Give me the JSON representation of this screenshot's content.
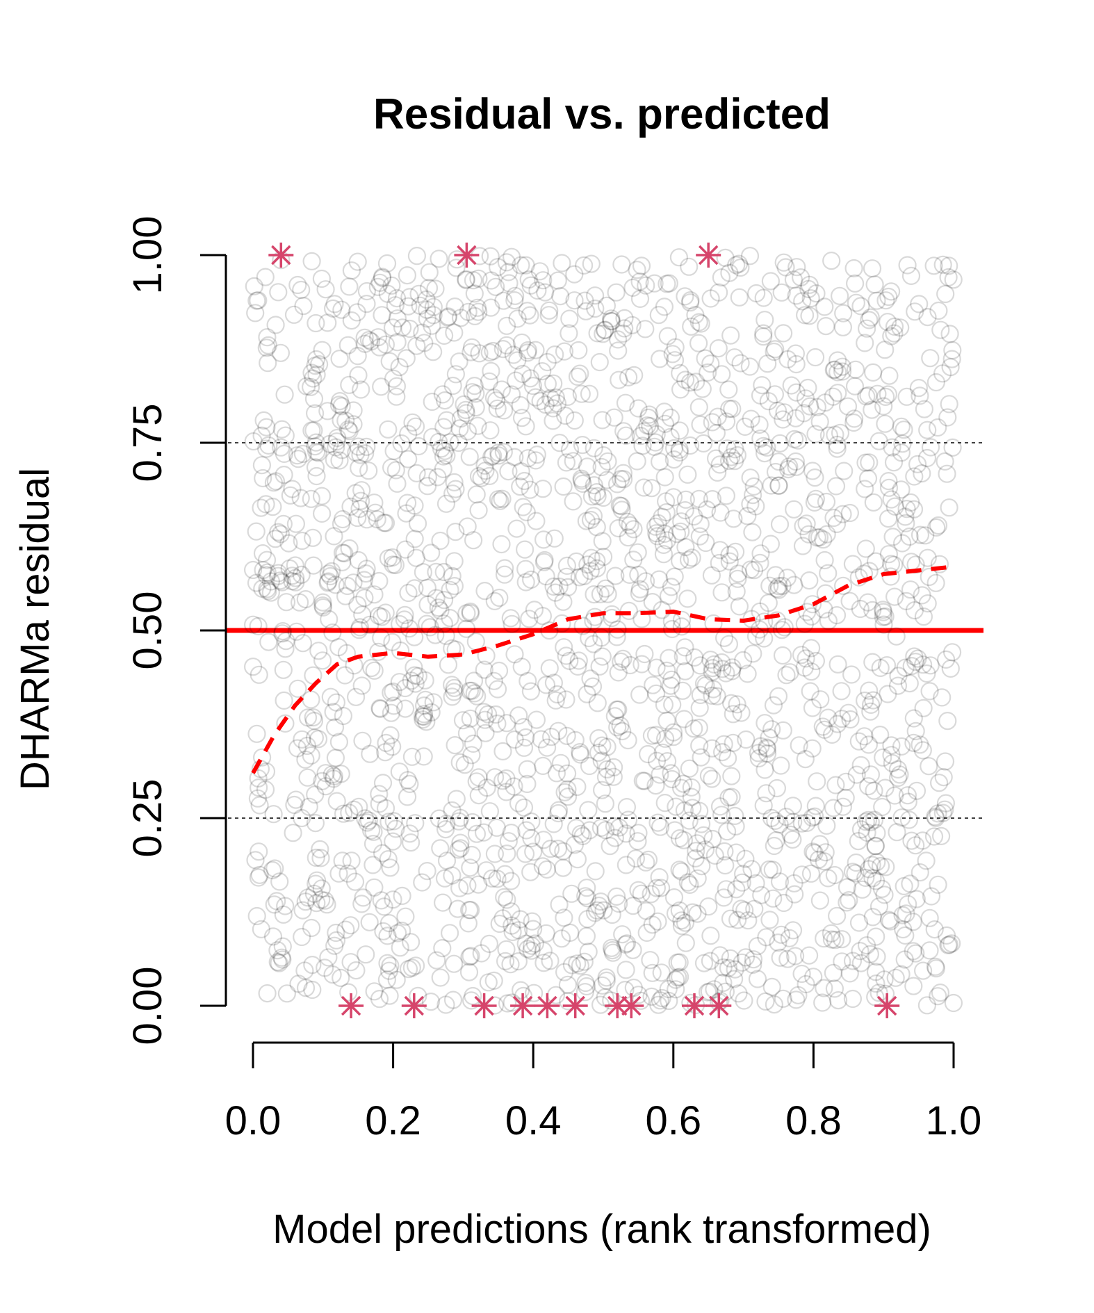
{
  "chart_data": {
    "type": "scatter",
    "title": "Residual vs. predicted",
    "xlabel": "Model predictions (rank transformed)",
    "ylabel": "DHARMa residual",
    "xlim": [
      -0.04,
      1.04
    ],
    "ylim": [
      0,
      1
    ],
    "x_ticks": [
      "0.0",
      "0.2",
      "0.4",
      "0.6",
      "0.8",
      "1.0"
    ],
    "y_ticks": [
      "0.00",
      "0.25",
      "0.50",
      "0.75",
      "1.00"
    ],
    "reference_lines": [
      {
        "y": 0.25,
        "style": "dotted",
        "color": "#000000"
      },
      {
        "y": 0.5,
        "style": "solid",
        "color": "#ff0000"
      },
      {
        "y": 0.75,
        "style": "dotted",
        "color": "#000000"
      }
    ],
    "points": {
      "description_count": 2000,
      "distribution": "uniform residuals across x in [0,1]",
      "marker": "open-circle",
      "color": "#000000",
      "opacity": 0.15
    },
    "outliers": {
      "marker": "asterisk",
      "color": "#d6456b",
      "points": [
        {
          "x": 0.04,
          "y": 1.0
        },
        {
          "x": 0.305,
          "y": 1.0
        },
        {
          "x": 0.65,
          "y": 1.0
        },
        {
          "x": 0.14,
          "y": 0.0
        },
        {
          "x": 0.23,
          "y": 0.0
        },
        {
          "x": 0.33,
          "y": 0.0
        },
        {
          "x": 0.385,
          "y": 0.0
        },
        {
          "x": 0.42,
          "y": 0.0
        },
        {
          "x": 0.46,
          "y": 0.0
        },
        {
          "x": 0.52,
          "y": 0.0
        },
        {
          "x": 0.54,
          "y": 0.0
        },
        {
          "x": 0.63,
          "y": 0.0
        },
        {
          "x": 0.665,
          "y": 0.0
        },
        {
          "x": 0.905,
          "y": 0.0
        }
      ]
    },
    "smoother": {
      "style": "dashed",
      "color": "#ff0000",
      "x": [
        0.0,
        0.03,
        0.06,
        0.09,
        0.12,
        0.15,
        0.2,
        0.25,
        0.3,
        0.35,
        0.4,
        0.45,
        0.5,
        0.55,
        0.6,
        0.65,
        0.7,
        0.75,
        0.8,
        0.85,
        0.9,
        0.95,
        1.0
      ],
      "y": [
        0.31,
        0.36,
        0.4,
        0.43,
        0.455,
        0.465,
        0.47,
        0.465,
        0.468,
        0.48,
        0.495,
        0.515,
        0.523,
        0.523,
        0.525,
        0.515,
        0.513,
        0.52,
        0.535,
        0.56,
        0.575,
        0.58,
        0.585
      ]
    }
  }
}
